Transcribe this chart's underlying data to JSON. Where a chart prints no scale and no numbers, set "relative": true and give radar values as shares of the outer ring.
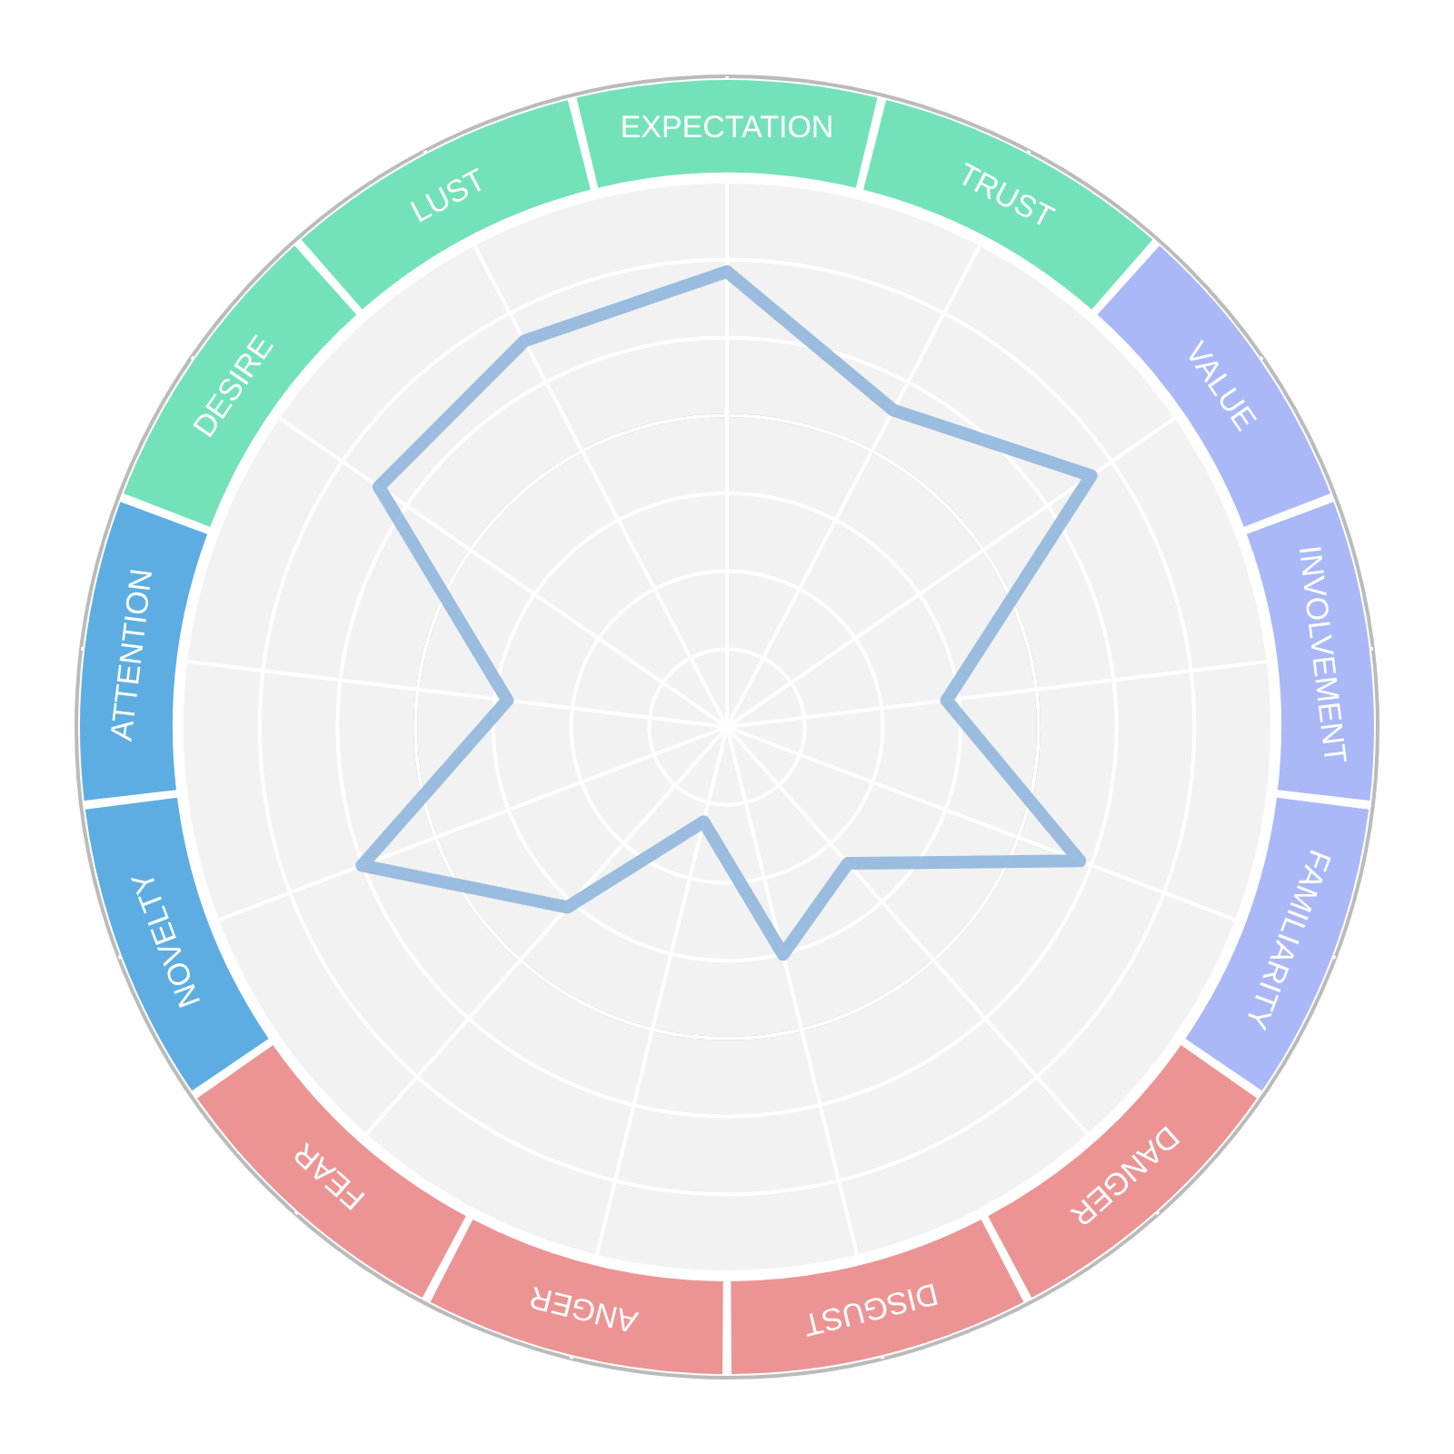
{
  "chart_data": {
    "type": "radar",
    "relative": true,
    "grid": true,
    "legend": false,
    "categories": [
      "EXPECTATION",
      "TRUST",
      "VALUE",
      "INVOLVEMENT",
      "FAMILIARITY",
      "DANGER",
      "DISGUST",
      "ANGER",
      "FEAR",
      "NOVELTY",
      "ATTENTION",
      "DESIRE",
      "LUST"
    ],
    "colors": [
      "#74e2b9",
      "#74e2b9",
      "#aab8f8",
      "#aab8f8",
      "#aab8f8",
      "#ec9494",
      "#ec9494",
      "#ec9494",
      "#ec9494",
      "#5dade2",
      "#5dade2",
      "#74e2b9",
      "#74e2b9"
    ],
    "series": [
      {
        "color": "#8bb3da",
        "values": [
          0.7,
          0.55,
          0.68,
          0.34,
          0.58,
          0.28,
          0.36,
          0.15,
          0.37,
          0.6,
          0.34,
          0.65,
          0.67
        ]
      }
    ]
  }
}
